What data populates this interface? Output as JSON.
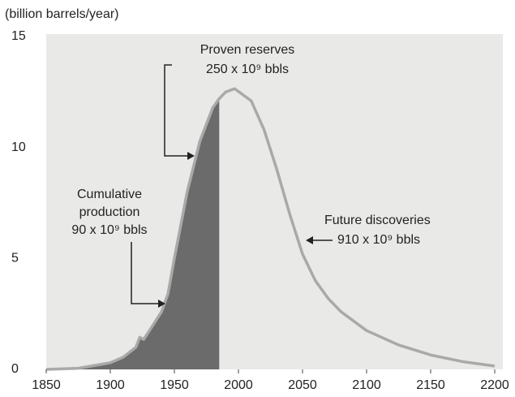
{
  "chart_data": {
    "type": "area-line",
    "y_axis_label": "(billion barrels/year)",
    "x": [
      1850,
      1875,
      1900,
      1910,
      1920,
      1923,
      1926,
      1930,
      1940,
      1945,
      1950,
      1960,
      1970,
      1980,
      1985,
      1990,
      1997,
      2010,
      2020,
      2030,
      2040,
      2050,
      2060,
      2070,
      2080,
      2100,
      2125,
      2150,
      2175,
      2200
    ],
    "series": [
      {
        "color": "#a9a9a9",
        "values": [
          0,
          0.05,
          0.3,
          0.55,
          1.0,
          1.45,
          1.35,
          1.7,
          2.6,
          3.4,
          5.0,
          8.0,
          10.3,
          11.8,
          12.2,
          12.5,
          12.65,
          12.1,
          10.8,
          9.0,
          7.0,
          5.2,
          4.0,
          3.2,
          2.6,
          1.75,
          1.1,
          0.65,
          0.35,
          0.15
        ]
      }
    ],
    "shade_to": 1985,
    "shade_color": "#6b6b6b",
    "xlim": [
      1850,
      2200
    ],
    "xticks": [
      1850,
      1900,
      1950,
      2000,
      2050,
      2100,
      2150,
      2200
    ],
    "ylim": [
      0,
      15
    ],
    "yticks": [
      0,
      5,
      10,
      15
    ],
    "annotations": [
      {
        "lines": [
          "Proven reserves",
          "250 x 10⁹ bbls"
        ]
      },
      {
        "lines": [
          "Cumulative",
          "production",
          "90 x 10⁹ bbls"
        ]
      },
      {
        "lines": [
          "Future discoveries",
          "910 x 10⁹ bbls"
        ]
      }
    ]
  }
}
